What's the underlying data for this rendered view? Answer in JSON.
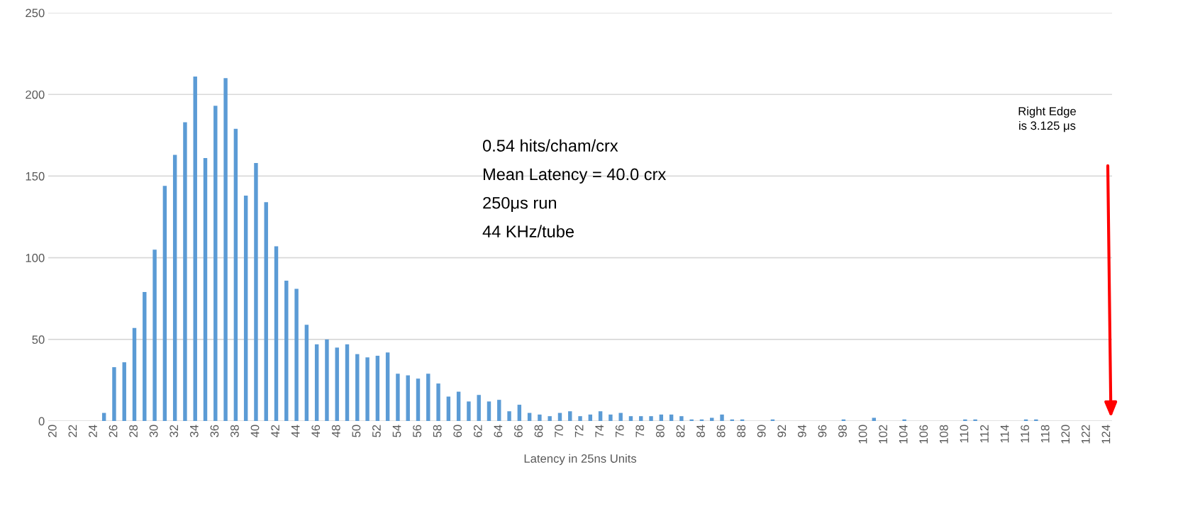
{
  "chart_data": {
    "type": "bar",
    "xlabel": "Latency in 25ns Units",
    "categories": [
      "20",
      null,
      "22",
      null,
      "24",
      null,
      "26",
      null,
      "28",
      null,
      "30",
      null,
      "32",
      null,
      "34",
      null,
      "36",
      null,
      "38",
      null,
      "40",
      null,
      "42",
      null,
      "44",
      null,
      "46",
      null,
      "48",
      null,
      "50",
      null,
      "52",
      null,
      "54",
      null,
      "56",
      null,
      "58",
      null,
      "60",
      null,
      "62",
      null,
      "64",
      null,
      "66",
      null,
      "68",
      null,
      "70",
      null,
      "72",
      null,
      "74",
      null,
      "76",
      null,
      "78",
      null,
      "80",
      null,
      "82",
      null,
      "84",
      null,
      "86",
      null,
      "88",
      null,
      "90",
      null,
      "92",
      null,
      "94",
      null,
      "96",
      null,
      "98",
      null,
      "100",
      null,
      "102",
      null,
      "104",
      null,
      "106",
      null,
      "108",
      null,
      "110",
      null,
      "112",
      null,
      "114",
      null,
      "116",
      null,
      "118",
      null,
      "120",
      null,
      "122",
      null,
      "124"
    ],
    "values": [
      0,
      0,
      0,
      0,
      0,
      5,
      33,
      36,
      57,
      79,
      105,
      144,
      163,
      183,
      211,
      161,
      193,
      210,
      179,
      138,
      158,
      134,
      107,
      86,
      81,
      59,
      47,
      50,
      45,
      47,
      41,
      39,
      40,
      42,
      29,
      28,
      26,
      29,
      23,
      15,
      18,
      12,
      16,
      12,
      13,
      6,
      10,
      5,
      4,
      3,
      5,
      6,
      3,
      4,
      6,
      4,
      5,
      3,
      3,
      3,
      4,
      4,
      3,
      1,
      1,
      2,
      4,
      1,
      1,
      0,
      0,
      1,
      0,
      0,
      0,
      0,
      0,
      0,
      1,
      0,
      0,
      2,
      0,
      0,
      1,
      0,
      0,
      0,
      0,
      0,
      1,
      1,
      0,
      0,
      0,
      0,
      1,
      1,
      0,
      0,
      0,
      0,
      0,
      0,
      0
    ],
    "color": "#5b9bd5",
    "ylim": [
      0,
      250
    ],
    "yticks": [
      0,
      50,
      100,
      150,
      200,
      250
    ],
    "grid": "y",
    "annotations": [
      "0.54 hits/cham/crx",
      "Mean Latency = 40.0 crx",
      "250μs run",
      "44 KHz/tube",
      "Right Edge\nis 3.125 μs"
    ]
  }
}
